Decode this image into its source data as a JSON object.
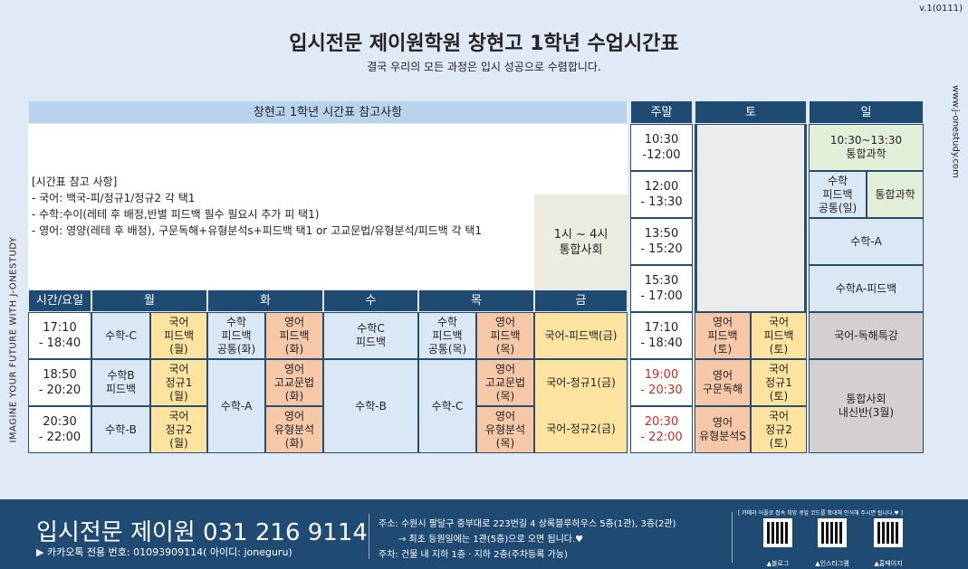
{
  "version": "v.1(0111)",
  "title": "입시전문 제이원학원 창현고 1학년 수업시간표",
  "subtitle": "결국 우리의 모든 과정은 입시 성공으로 수렴합니다.",
  "side_left": "IMAGINE YOUR FUTURE WITH J-ONESTUDY",
  "side_right": "www.j-onestudy.com",
  "notes": {
    "header": "창현고 1학년 시간표 참고사항",
    "lines": [
      "[시간표 참고 사항]",
      "- 국어: 백국-피/정규1/정규2 각 택1",
      "- 수학:수이(레테 후 배정,반별 피드백 필수 필요시 추가 피 택1)",
      "- 영어: 영양(레테 후 배정), 구문독해+유형분석s+피드백 택1 or 고교문법/유형분석/피드백 각 택1"
    ],
    "extra": "1시 ~ 4시\n통합사회"
  },
  "weekday": {
    "headers": [
      "시간/요일",
      "월",
      "화",
      "수",
      "목",
      "금"
    ],
    "times": [
      "17:10\n- 18:40",
      "18:50\n- 20:20",
      "20:30\n- 22:00"
    ],
    "mon": [
      "수학-C",
      "국어\n피드백\n(월)",
      "수학B\n피드백",
      "국어\n정규1\n(월)",
      "수학-B",
      "국어\n정규2\n(월)"
    ],
    "tue": [
      "수학\n피드백\n공통(화)",
      "영어\n피드백\n(화)",
      "수학-A",
      "영어\n고교문법\n(화)",
      "영어\n유형분석\n(화)"
    ],
    "wed": [
      "수학C\n피드백",
      "수학-B"
    ],
    "thu": [
      "수학\n피드백\n공통(목)",
      "영어\n피드백\n(목)",
      "수학-C",
      "영어\n고교문법\n(목)",
      "영어\n유형분석\n(목)"
    ],
    "fri": [
      "국어-피드백(금)",
      "국어-정규1(금)",
      "국어-정규2(금)"
    ]
  },
  "weekend": {
    "headers": [
      "주말",
      "토",
      "일"
    ],
    "times": [
      "10:30\n-12:00",
      "12:00\n- 13:30",
      "13:50\n- 15:20",
      "15:30\n- 17:00",
      "17:10\n- 18:40",
      "19:00\n- 20:30",
      "20:30\n- 22:00"
    ],
    "sat": [
      "영어\n피드백\n(토)",
      "국어\n피드백\n(토)",
      "영어\n구문독해",
      "국어\n정규1\n(토)",
      "영어\n유형분석S",
      "국어\n정규2\n(토)"
    ],
    "sun": [
      "10:30~13:30\n통합과학",
      "수학\n피드백\n공통(일)",
      "통합과학",
      "수학-A",
      "수학A-피드백",
      "국어-독해특강",
      "통합사회\n내신반(3월)"
    ]
  },
  "footer": {
    "brand": "입시전문 제이원 031 216 9114",
    "kakao": "▶ 카카오톡 전용 번호: 01093909114( 아이디: joneguru)",
    "address": "주소: 수원시 팔달구 중부대로 223번길 4 상록블루하우스 5층(1관), 3층(2관)",
    "first_visit": "→ 최초 등원일에는 1관(5층)으로 오면 됩니다.♥",
    "parking": "주차: 건물 내 지하 1층 · 지하 2층(주차등록 가능)",
    "qr_note": "[ 카메라 어플로 접속 희망 큐알 코드를 확대해 인식해 주시면 됩니다.♥ ]",
    "qr_labels": [
      "▲블로그",
      "▲인스타그램",
      "▲홈페이지"
    ]
  }
}
